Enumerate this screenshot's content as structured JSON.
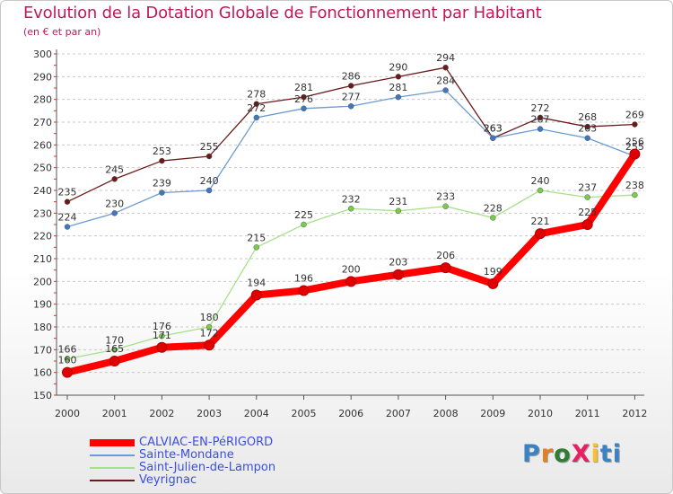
{
  "title": "Evolution de la Dotation Globale de Fonctionnement par Habitant",
  "subtitle": "(en € et par an)",
  "colors": {
    "title": "#c2185b",
    "legend_text": "#3b4fe0",
    "axis": "#555555",
    "grid": "#c8c8c8"
  },
  "logo": {
    "text": "ProXiti",
    "letter_colors": [
      "#3b82c4",
      "#e67e22",
      "#2e7d32",
      "#e91e63",
      "#fbc02d",
      "#3b82c4",
      "#3b82c4"
    ]
  },
  "chart_data": {
    "type": "line",
    "title": "Evolution de la Dotation Globale de Fonctionnement par Habitant",
    "subtitle": "(en € et par an)",
    "xlabel": "",
    "ylabel": "",
    "ylim": [
      150,
      300
    ],
    "y_ticks": [
      150,
      160,
      170,
      180,
      190,
      200,
      210,
      220,
      230,
      240,
      250,
      260,
      270,
      280,
      290,
      300
    ],
    "grid": "horizontal dashed",
    "legend_position": "bottom-left",
    "x": [
      "2000",
      "2001",
      "2002",
      "2003",
      "2004",
      "2005",
      "2006",
      "2007",
      "2008",
      "2009",
      "2010",
      "2011",
      "2012"
    ],
    "series": [
      {
        "name": "Veyrignac",
        "color": "#6b1a1a",
        "marker": "#6b1a1a",
        "width": "thin",
        "values": [
          235,
          245,
          253,
          255,
          278,
          281,
          286,
          290,
          294,
          263,
          272,
          268,
          269
        ]
      },
      {
        "name": "Sainte-Mondane",
        "color": "#6b9bd2",
        "marker": "#3f78c0",
        "width": "thin",
        "values": [
          224,
          230,
          239,
          240,
          272,
          276,
          277,
          281,
          284,
          263,
          267,
          263,
          255
        ]
      },
      {
        "name": "Saint-Julien-de-Lampon",
        "color": "#a8e089",
        "marker": "#7ccc4c",
        "width": "thin",
        "values": [
          166,
          170,
          176,
          180,
          215,
          225,
          232,
          231,
          233,
          228,
          240,
          237,
          238
        ]
      },
      {
        "name": "CALVIAC-EN-PéRIGORD",
        "color": "#ff0000",
        "marker": "#e00000",
        "width": "thick",
        "values": [
          160,
          165,
          171,
          172,
          194,
          196,
          200,
          203,
          206,
          199,
          221,
          225,
          256
        ]
      }
    ]
  },
  "legend": [
    {
      "name": "CALVIAC-EN-PéRIGORD",
      "color": "#ff0000",
      "thick": true
    },
    {
      "name": "Sainte-Mondane",
      "color": "#6b9bd2",
      "thick": false
    },
    {
      "name": "Saint-Julien-de-Lampon",
      "color": "#a8e089",
      "thick": false
    },
    {
      "name": "Veyrignac",
      "color": "#6b1a1a",
      "thick": false
    }
  ]
}
